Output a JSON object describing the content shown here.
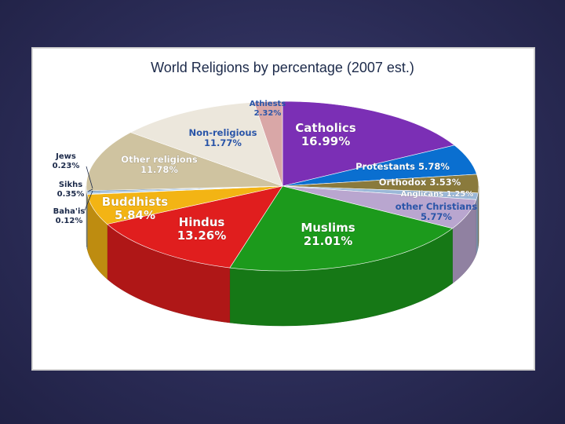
{
  "chart_data": {
    "type": "pie",
    "title": "World Religions by percentage (2007 est.)",
    "slices": [
      {
        "name": "Catholics",
        "value": 16.99,
        "value_label": "16.99%",
        "color": "#7b2fb5"
      },
      {
        "name": "Protestants",
        "value": 5.78,
        "value_label": "5.78%",
        "color": "#0a6fd0"
      },
      {
        "name": "Orthodox",
        "value": 3.53,
        "value_label": "3.53%",
        "color": "#8a7a3c"
      },
      {
        "name": "Anglicans",
        "value": 1.25,
        "value_label": "1.25%",
        "color": "#9bb8d8"
      },
      {
        "name": "other Christians",
        "value": 5.77,
        "value_label": "5.77%",
        "color": "#b9a6cf"
      },
      {
        "name": "Muslims",
        "value": 21.01,
        "value_label": "21.01%",
        "color": "#1c9a1c"
      },
      {
        "name": "Hindus",
        "value": 13.26,
        "value_label": "13.26%",
        "color": "#e01e1e"
      },
      {
        "name": "Buddhists",
        "value": 5.84,
        "value_label": "5.84%",
        "color": "#f3b414"
      },
      {
        "name": "Baha'is",
        "value": 0.12,
        "value_label": "0.12%",
        "color": "#6e8fb0"
      },
      {
        "name": "Sikhs",
        "value": 0.35,
        "value_label": "0.35%",
        "color": "#8fb4d8"
      },
      {
        "name": "Jews",
        "value": 0.23,
        "value_label": "0.23%",
        "color": "#4a78a8"
      },
      {
        "name": "Other religions",
        "value": 11.78,
        "value_label": "11.78%",
        "color": "#cfc3a0"
      },
      {
        "name": "Non-religious",
        "value": 11.77,
        "value_label": "11.77%",
        "color": "#ece7dc"
      },
      {
        "name": "Athiests",
        "value": 2.32,
        "value_label": "2.32%",
        "color": "#d9a7a7"
      }
    ]
  }
}
